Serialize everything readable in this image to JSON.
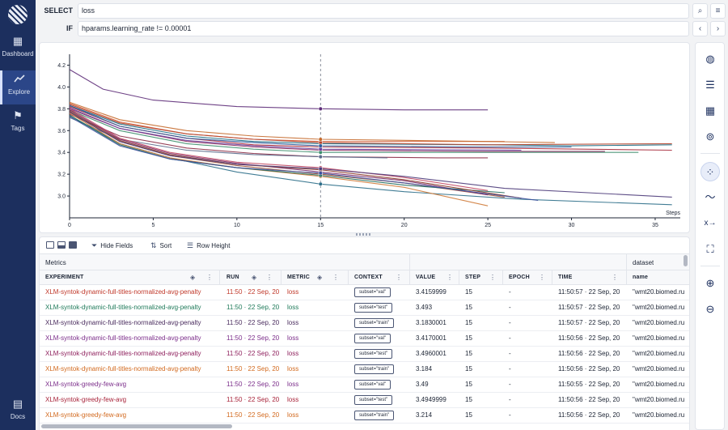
{
  "nav": {
    "items": [
      {
        "label": "Dashboard",
        "icon": "dashboard-icon",
        "glyph": "▦"
      },
      {
        "label": "Explore",
        "icon": "explore-icon",
        "glyph": "⟋"
      },
      {
        "label": "Tags",
        "icon": "flag-icon",
        "glyph": "⚑"
      }
    ],
    "bottom": {
      "label": "Docs",
      "icon": "docs-icon",
      "glyph": "▤"
    }
  },
  "query": {
    "select_label": "SELECT",
    "select_value": "loss",
    "if_label": "IF",
    "if_value": "hparams.learning_rate != 0.00001"
  },
  "chart_data": {
    "type": "line",
    "xlabel": "Steps",
    "ylabel": "",
    "xlim": [
      0,
      36.5
    ],
    "ylim": [
      2.8,
      4.3
    ],
    "x_ticks": [
      0,
      5,
      10,
      15,
      20,
      25,
      30,
      35
    ],
    "y_ticks": [
      3.0,
      3.2,
      3.4,
      3.6,
      3.8,
      4.0,
      4.2
    ],
    "cursor_step": 15,
    "series": [
      {
        "color": "#5e2d79",
        "values": [
          [
            0,
            4.16
          ],
          [
            2,
            3.98
          ],
          [
            5,
            3.88
          ],
          [
            10,
            3.82
          ],
          [
            15,
            3.8
          ],
          [
            20,
            3.79
          ],
          [
            25,
            3.79
          ]
        ]
      },
      {
        "color": "#d4633f",
        "values": [
          [
            0,
            3.85
          ],
          [
            3,
            3.68
          ],
          [
            7,
            3.57
          ],
          [
            11,
            3.52
          ],
          [
            15,
            3.5
          ],
          [
            20,
            3.5
          ],
          [
            26,
            3.5
          ]
        ]
      },
      {
        "color": "#1b6d84",
        "values": [
          [
            0,
            3.83
          ],
          [
            3,
            3.66
          ],
          [
            7,
            3.55
          ],
          [
            11,
            3.5
          ],
          [
            15,
            3.48
          ],
          [
            25,
            3.47
          ],
          [
            30,
            3.46
          ],
          [
            36,
            3.47
          ]
        ]
      },
      {
        "color": "#a6293a",
        "values": [
          [
            0,
            3.82
          ],
          [
            3,
            3.64
          ],
          [
            7,
            3.53
          ],
          [
            11,
            3.47
          ],
          [
            15,
            3.45
          ],
          [
            25,
            3.44
          ],
          [
            36,
            3.42
          ]
        ]
      },
      {
        "color": "#8a2f61",
        "values": [
          [
            0,
            3.8
          ],
          [
            3,
            3.62
          ],
          [
            7,
            3.5
          ],
          [
            11,
            3.45
          ],
          [
            15,
            3.42
          ],
          [
            25,
            3.41
          ],
          [
            32,
            3.41
          ]
        ]
      },
      {
        "color": "#3e8e6d",
        "values": [
          [
            0,
            3.79
          ],
          [
            3,
            3.6
          ],
          [
            7,
            3.48
          ],
          [
            11,
            3.43
          ],
          [
            15,
            3.4
          ],
          [
            25,
            3.4
          ],
          [
            34,
            3.4
          ]
        ]
      },
      {
        "color": "#b5462f",
        "values": [
          [
            0,
            3.84
          ],
          [
            3,
            3.67
          ],
          [
            7,
            3.57
          ],
          [
            11,
            3.52
          ],
          [
            15,
            3.49
          ],
          [
            25,
            3.47
          ],
          [
            36,
            3.48
          ]
        ]
      },
      {
        "color": "#6a3f9c",
        "values": [
          [
            0,
            3.81
          ],
          [
            3,
            3.62
          ],
          [
            7,
            3.51
          ],
          [
            11,
            3.46
          ],
          [
            15,
            3.43
          ],
          [
            27,
            3.42
          ]
        ]
      },
      {
        "color": "#c56a2c",
        "values": [
          [
            0,
            3.86
          ],
          [
            3,
            3.7
          ],
          [
            7,
            3.6
          ],
          [
            11,
            3.55
          ],
          [
            15,
            3.52
          ],
          [
            25,
            3.5
          ],
          [
            29,
            3.49
          ]
        ]
      },
      {
        "color": "#2c5c9c",
        "values": [
          [
            0,
            3.83
          ],
          [
            3,
            3.64
          ],
          [
            7,
            3.53
          ],
          [
            11,
            3.49
          ],
          [
            15,
            3.46
          ],
          [
            25,
            3.45
          ],
          [
            30,
            3.45
          ]
        ]
      },
      {
        "color": "#8b2b45",
        "values": [
          [
            0,
            3.75
          ],
          [
            3,
            3.55
          ],
          [
            7,
            3.44
          ],
          [
            11,
            3.39
          ],
          [
            15,
            3.36
          ],
          [
            22,
            3.35
          ],
          [
            25,
            3.35
          ]
        ]
      },
      {
        "color": "#5b6b8c",
        "values": [
          [
            0,
            3.72
          ],
          [
            3,
            3.52
          ],
          [
            7,
            3.42
          ],
          [
            11,
            3.38
          ],
          [
            15,
            3.36
          ],
          [
            19,
            3.35
          ]
        ]
      },
      {
        "color": "#2d6f8a",
        "values": [
          [
            0,
            3.74
          ],
          [
            3,
            3.48
          ],
          [
            6,
            3.35
          ],
          [
            10,
            3.22
          ],
          [
            15,
            3.11
          ],
          [
            20,
            3.04
          ],
          [
            27,
            2.97
          ],
          [
            36,
            2.92
          ]
        ]
      },
      {
        "color": "#a3573a",
        "values": [
          [
            0,
            3.77
          ],
          [
            3,
            3.5
          ],
          [
            6,
            3.37
          ],
          [
            10,
            3.28
          ],
          [
            15,
            3.2
          ],
          [
            20,
            3.12
          ],
          [
            26,
            2.99
          ]
        ]
      },
      {
        "color": "#7a2d6b",
        "values": [
          [
            0,
            3.79
          ],
          [
            3,
            3.52
          ],
          [
            6,
            3.39
          ],
          [
            10,
            3.3
          ],
          [
            15,
            3.22
          ],
          [
            20,
            3.14
          ],
          [
            25,
            3.01
          ]
        ]
      },
      {
        "color": "#cf7b3a",
        "values": [
          [
            0,
            3.76
          ],
          [
            3,
            3.48
          ],
          [
            6,
            3.35
          ],
          [
            10,
            3.26
          ],
          [
            15,
            3.18
          ],
          [
            20,
            3.08
          ],
          [
            25,
            2.91
          ]
        ]
      },
      {
        "color": "#1e6b5c",
        "values": [
          [
            0,
            3.74
          ],
          [
            3,
            3.47
          ],
          [
            6,
            3.34
          ],
          [
            10,
            3.26
          ],
          [
            15,
            3.19
          ],
          [
            20,
            3.1
          ],
          [
            26,
            3.03
          ]
        ]
      },
      {
        "color": "#8c3c2a",
        "values": [
          [
            0,
            3.78
          ],
          [
            3,
            3.51
          ],
          [
            6,
            3.38
          ],
          [
            10,
            3.29
          ],
          [
            15,
            3.24
          ],
          [
            20,
            3.15
          ],
          [
            27,
            2.98
          ]
        ]
      },
      {
        "color": "#3c4f9c",
        "values": [
          [
            0,
            3.73
          ],
          [
            3,
            3.46
          ],
          [
            6,
            3.34
          ],
          [
            10,
            3.26
          ],
          [
            15,
            3.21
          ],
          [
            20,
            3.12
          ],
          [
            28,
            2.96
          ]
        ]
      },
      {
        "color": "#c24a64",
        "values": [
          [
            0,
            3.8
          ],
          [
            3,
            3.53
          ],
          [
            6,
            3.4
          ],
          [
            10,
            3.31
          ],
          [
            15,
            3.26
          ],
          [
            20,
            3.17
          ],
          [
            25,
            3.05
          ]
        ]
      },
      {
        "color": "#4d3b7a",
        "values": [
          [
            0,
            3.77
          ],
          [
            3,
            3.5
          ],
          [
            6,
            3.37
          ],
          [
            10,
            3.29
          ],
          [
            15,
            3.25
          ],
          [
            20,
            3.18
          ],
          [
            26,
            3.07
          ],
          [
            36,
            2.99
          ]
        ]
      }
    ]
  },
  "table": {
    "toolbar": {
      "hide_fields": "Hide Fields",
      "sort": "Sort",
      "row_height": "Row Height"
    },
    "group_metrics": "Metrics",
    "group_dataset": "dataset",
    "columns": {
      "experiment": "EXPERIMENT",
      "run": "RUN",
      "metric": "METRIC",
      "context": "CONTEXT",
      "value": "VALUE",
      "step": "STEP",
      "epoch": "EPOCH",
      "time": "TIME",
      "name": "name"
    },
    "rows": [
      {
        "experiment": "XLM-syntok-dynamic-full-titles-normalized-avg-penalty",
        "color": "#c0392b",
        "run": "11:50 · 22 Sep, 20",
        "metric": "loss",
        "context": "subset=\"val\"",
        "value": "3.4159999",
        "step": "15",
        "epoch": "-",
        "time": "11:50:57 · 22 Sep, 20",
        "name": "\"wmt20.biomed.ru"
      },
      {
        "experiment": "XLM-syntok-dynamic-full-titles-normalized-avg-penalty",
        "color": "#1f7a5a",
        "run": "11:50 · 22 Sep, 20",
        "metric": "loss",
        "context": "subset=\"test\"",
        "value": "3.493",
        "step": "15",
        "epoch": "-",
        "time": "11:50:57 · 22 Sep, 20",
        "name": "\"wmt20.biomed.ru"
      },
      {
        "experiment": "XLM-syntok-dynamic-full-titles-normalized-avg-penalty",
        "color": "#4a2c5e",
        "run": "11:50 · 22 Sep, 20",
        "metric": "loss",
        "context": "subset=\"train\"",
        "value": "3.1830001",
        "step": "15",
        "epoch": "-",
        "time": "11:50:57 · 22 Sep, 20",
        "name": "\"wmt20.biomed.ru"
      },
      {
        "experiment": "XLM-syntok-dynamic-full-titles-normalized-avg-penalty",
        "color": "#7b2d8a",
        "run": "11:50 · 22 Sep, 20",
        "metric": "loss",
        "context": "subset=\"val\"",
        "value": "3.4170001",
        "step": "15",
        "epoch": "-",
        "time": "11:50:56 · 22 Sep, 20",
        "name": "\"wmt20.biomed.ru"
      },
      {
        "experiment": "XLM-syntok-dynamic-full-titles-normalized-avg-penalty",
        "color": "#8e1f5c",
        "run": "11:50 · 22 Sep, 20",
        "metric": "loss",
        "context": "subset=\"test\"",
        "value": "3.4960001",
        "step": "15",
        "epoch": "-",
        "time": "11:50:56 · 22 Sep, 20",
        "name": "\"wmt20.biomed.ru"
      },
      {
        "experiment": "XLM-syntok-dynamic-full-titles-normalized-avg-penalty",
        "color": "#d2691e",
        "run": "11:50 · 22 Sep, 20",
        "metric": "loss",
        "context": "subset=\"train\"",
        "value": "3.184",
        "step": "15",
        "epoch": "-",
        "time": "11:50:56 · 22 Sep, 20",
        "name": "\"wmt20.biomed.ru"
      },
      {
        "experiment": "XLM-syntok-greedy-few-avg",
        "color": "#7b2d8a",
        "run": "11:50 · 22 Sep, 20",
        "metric": "loss",
        "context": "subset=\"val\"",
        "value": "3.49",
        "step": "15",
        "epoch": "-",
        "time": "11:50:55 · 22 Sep, 20",
        "name": "\"wmt20.biomed.ru"
      },
      {
        "experiment": "XLM-syntok-greedy-few-avg",
        "color": "#a8233a",
        "run": "11:50 · 22 Sep, 20",
        "metric": "loss",
        "context": "subset=\"test\"",
        "value": "3.4949999",
        "step": "15",
        "epoch": "-",
        "time": "11:50:56 · 22 Sep, 20",
        "name": "\"wmt20.biomed.ru"
      },
      {
        "experiment": "XLM-syntok-greedy-few-avg",
        "color": "#d2691e",
        "run": "11:50 · 22 Sep, 20",
        "metric": "loss",
        "context": "subset=\"train\"",
        "value": "3.214",
        "step": "15",
        "epoch": "-",
        "time": "11:50:56 · 22 Sep, 20",
        "name": "\"wmt20.biomed.ru"
      }
    ]
  },
  "rightbar": {
    "icons": [
      "palette-icon",
      "line-style-icon",
      "grid-icon",
      "circle-dots-icon",
      "points-icon",
      "smoothing-icon",
      "x-axis-icon",
      "focus-icon",
      "zoom-in-icon",
      "zoom-out-icon"
    ]
  }
}
